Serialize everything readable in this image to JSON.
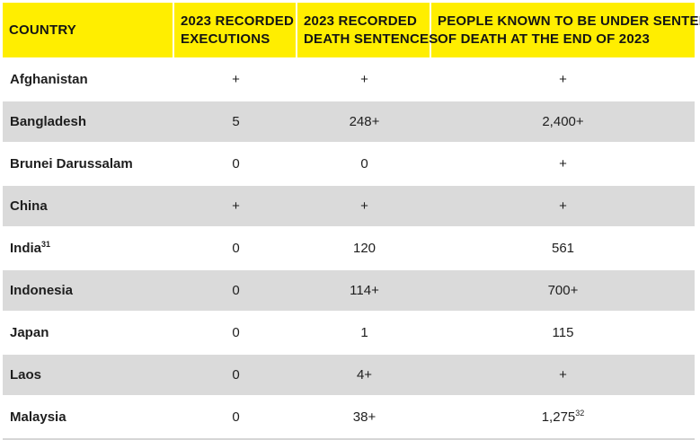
{
  "table": {
    "headers": [
      [
        "COUNTRY"
      ],
      [
        "2023 RECORDED",
        "EXECUTIONS"
      ],
      [
        "2023 RECORDED",
        "DEATH SENTENCES"
      ],
      [
        "PEOPLE KNOWN TO BE UNDER SENTENCE",
        "OF DEATH AT THE END OF 2023"
      ]
    ],
    "rows": [
      {
        "country": "Afghanistan",
        "country_note": "",
        "executions": "+",
        "death_sentences": "+",
        "under_sentence": "+",
        "under_sentence_note": ""
      },
      {
        "country": "Bangladesh",
        "country_note": "",
        "executions": "5",
        "death_sentences": "248+",
        "under_sentence": "2,400+",
        "under_sentence_note": ""
      },
      {
        "country": "Brunei Darussalam",
        "country_note": "",
        "executions": "0",
        "death_sentences": "0",
        "under_sentence": "+",
        "under_sentence_note": ""
      },
      {
        "country": "China",
        "country_note": "",
        "executions": "+",
        "death_sentences": "+",
        "under_sentence": "+",
        "under_sentence_note": ""
      },
      {
        "country": "India",
        "country_note": "31",
        "executions": "0",
        "death_sentences": "120",
        "under_sentence": "561",
        "under_sentence_note": ""
      },
      {
        "country": "Indonesia",
        "country_note": "",
        "executions": "0",
        "death_sentences": "114+",
        "under_sentence": "700+",
        "under_sentence_note": ""
      },
      {
        "country": "Japan",
        "country_note": "",
        "executions": "0",
        "death_sentences": "1",
        "under_sentence": "115",
        "under_sentence_note": ""
      },
      {
        "country": "Laos",
        "country_note": "",
        "executions": "0",
        "death_sentences": "4+",
        "under_sentence": "+",
        "under_sentence_note": ""
      },
      {
        "country": "Malaysia",
        "country_note": "",
        "executions": "0",
        "death_sentences": "38+",
        "under_sentence": "1,275",
        "under_sentence_note": "32"
      }
    ]
  },
  "colors": {
    "header_bg": "#ffee00",
    "row_shade": "#dadada",
    "row_plain": "#ffffff",
    "text": "#1a1a1a"
  }
}
